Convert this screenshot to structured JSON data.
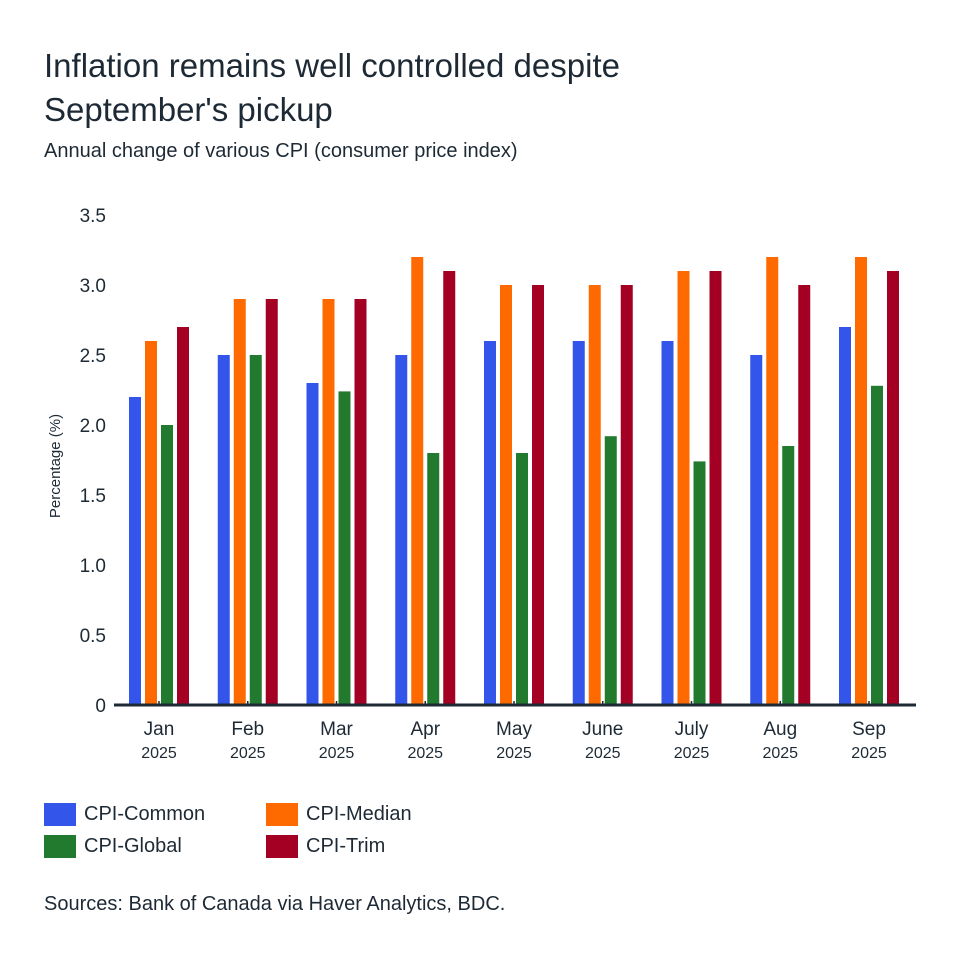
{
  "header": {
    "title": "Inflation remains well controlled despite September's pickup",
    "subtitle": "Annual change of various CPI (consumer price index)"
  },
  "source": "Sources: Bank of Canada via Haver Analytics, BDC.",
  "chart_data": {
    "type": "bar",
    "title": "Inflation remains well controlled despite September's pickup",
    "subtitle": "Annual change of various CPI (consumer price index)",
    "xlabel": "",
    "ylabel": "Percentage (%)",
    "ylim": [
      0,
      3.5
    ],
    "yticks": [
      0,
      0.5,
      1.0,
      1.5,
      2.0,
      2.5,
      3.0,
      3.5
    ],
    "ytick_labels": [
      "0",
      "0.5",
      "1.0",
      "1.5",
      "2.0",
      "2.5",
      "3.0",
      "3.5"
    ],
    "grid": false,
    "legend_position": "bottom-left",
    "categories": [
      {
        "month": "Jan",
        "year": "2025"
      },
      {
        "month": "Feb",
        "year": "2025"
      },
      {
        "month": "Mar",
        "year": "2025"
      },
      {
        "month": "Apr",
        "year": "2025"
      },
      {
        "month": "May",
        "year": "2025"
      },
      {
        "month": "June",
        "year": "2025"
      },
      {
        "month": "July",
        "year": "2025"
      },
      {
        "month": "Aug",
        "year": "2025"
      },
      {
        "month": "Sep",
        "year": "2025"
      }
    ],
    "series": [
      {
        "name": "CPI-Common",
        "color": "#3355ea",
        "values": [
          2.2,
          2.5,
          2.3,
          2.5,
          2.6,
          2.6,
          2.6,
          2.5,
          2.7
        ]
      },
      {
        "name": "CPI-Median",
        "color": "#ff6a00",
        "values": [
          2.6,
          2.9,
          2.9,
          3.2,
          3.0,
          3.0,
          3.1,
          3.2,
          3.2
        ]
      },
      {
        "name": "CPI-Global",
        "color": "#217a2e",
        "values": [
          2.0,
          2.5,
          2.24,
          1.8,
          1.8,
          1.92,
          1.74,
          1.85,
          2.28
        ]
      },
      {
        "name": "CPI-Trim",
        "color": "#a30024",
        "values": [
          2.7,
          2.9,
          2.9,
          3.1,
          3.0,
          3.0,
          3.1,
          3.0,
          3.1
        ]
      }
    ],
    "legend": [
      {
        "label": "CPI-Common",
        "color": "#3355ea"
      },
      {
        "label": "CPI-Median",
        "color": "#ff6a00"
      },
      {
        "label": "CPI-Global",
        "color": "#217a2e"
      },
      {
        "label": "CPI-Trim",
        "color": "#a30024"
      }
    ],
    "axis_color": "#1d2a35"
  }
}
